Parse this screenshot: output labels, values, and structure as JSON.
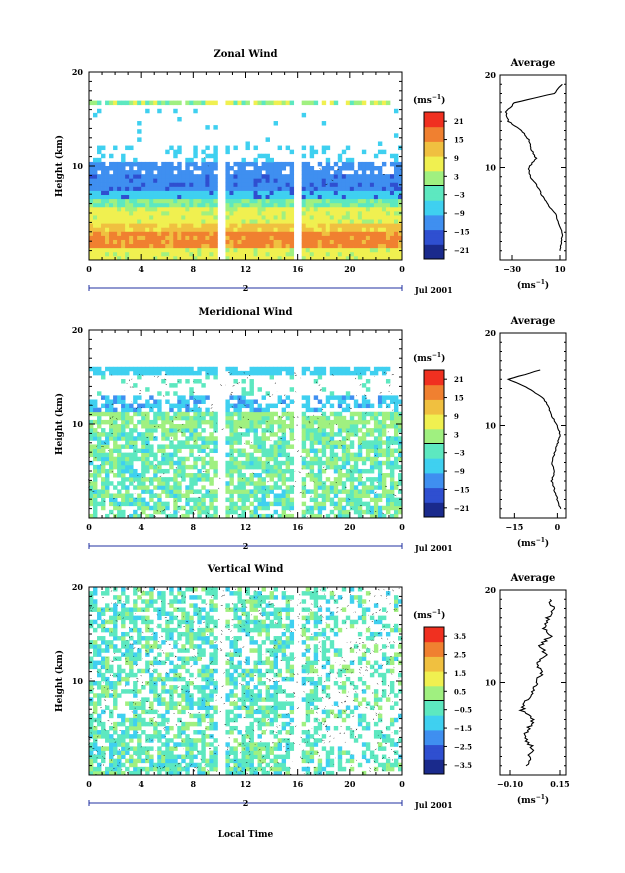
{
  "chart_data": [
    {
      "type": "heatmap",
      "title": "Zonal Wind",
      "ylabel": "Height (km)",
      "yticks": [
        "10",
        "20"
      ],
      "xticks": [
        "0",
        "4",
        "8",
        "12",
        "16",
        "20",
        "0"
      ],
      "day_marker": "2",
      "date_label": "Jul 2001",
      "xlim": [
        0,
        24
      ],
      "ylim": [
        0,
        20
      ],
      "colorbar": {
        "unit_base": "(ms",
        "unit_exp": "−1",
        "unit_close": ")",
        "ticks": [
          "21",
          "15",
          "9",
          "3",
          "−3",
          "−9",
          "−15",
          "−21"
        ],
        "range": [
          -24,
          24
        ],
        "colors": [
          "#1a2a8c",
          "#2f4fd0",
          "#3f8ff0",
          "#3fd0f0",
          "#5de8c0",
          "#a0f080",
          "#f0f050",
          "#f0c040",
          "#f08030",
          "#f03020"
        ]
      },
      "average": {
        "title": "Average",
        "unit_base": "(ms",
        "unit_exp": "−1",
        "unit_close": ")",
        "xticks": [
          "−30",
          "10"
        ],
        "yticks": [
          "10",
          "20"
        ],
        "xlim": [
          -40,
          15
        ],
        "height": [
          1,
          2,
          3,
          4,
          5,
          6,
          7,
          8,
          9,
          10,
          11,
          12,
          13,
          14,
          15,
          16,
          17,
          18,
          19
        ],
        "values": [
          10,
          11,
          12,
          9,
          6,
          0,
          -5,
          -9,
          -15,
          -16,
          -10,
          -14,
          -16,
          -22,
          -33,
          -35,
          -28,
          5,
          12
        ]
      }
    },
    {
      "type": "heatmap",
      "title": "Meridional Wind",
      "ylabel": "Height (km)",
      "yticks": [
        "10",
        "20"
      ],
      "xticks": [
        "0",
        "4",
        "8",
        "12",
        "16",
        "20",
        "0"
      ],
      "day_marker": "2",
      "date_label": "Jul 2001",
      "xlim": [
        0,
        24
      ],
      "ylim": [
        0,
        20
      ],
      "colorbar": {
        "unit_base": "(ms",
        "unit_exp": "−1",
        "unit_close": ")",
        "ticks": [
          "21",
          "15",
          "9",
          "3",
          "−3",
          "−9",
          "−15",
          "−21"
        ],
        "range": [
          -24,
          24
        ],
        "colors": [
          "#1a2a8c",
          "#2f4fd0",
          "#3f8ff0",
          "#3fd0f0",
          "#5de8c0",
          "#a0f080",
          "#f0f050",
          "#f0c040",
          "#f08030",
          "#f03020"
        ]
      },
      "average": {
        "title": "Average",
        "unit_base": "(ms",
        "unit_exp": "−1",
        "unit_close": ")",
        "xticks": [
          "−15",
          "0"
        ],
        "yticks": [
          "10",
          "20"
        ],
        "xlim": [
          -20,
          3
        ],
        "height": [
          1,
          2,
          3,
          4,
          5,
          6,
          7,
          8,
          9,
          10,
          11,
          12,
          13,
          14,
          15,
          16
        ],
        "values": [
          1,
          0,
          -1,
          -2,
          -1,
          -2,
          -1,
          0,
          1,
          0,
          -2,
          -3,
          -5,
          -10,
          -17,
          -6
        ]
      }
    },
    {
      "type": "heatmap",
      "title": "Vertical Wind",
      "ylabel": "Height (km)",
      "xlabel": "Local Time",
      "yticks": [
        "10",
        "20"
      ],
      "xticks": [
        "0",
        "4",
        "8",
        "12",
        "16",
        "20",
        "0"
      ],
      "day_marker": "2",
      "date_label": "Jul 2001",
      "xlim": [
        0,
        24
      ],
      "ylim": [
        0,
        20
      ],
      "colorbar": {
        "unit_base": "(ms",
        "unit_exp": "−1",
        "unit_close": ")",
        "ticks": [
          "3.5",
          "2.5",
          "1.5",
          "0.5",
          "−0.5",
          "−1.5",
          "−2.5",
          "−3.5"
        ],
        "range": [
          -4,
          4
        ],
        "colors": [
          "#1a2a8c",
          "#2f4fd0",
          "#3f8ff0",
          "#3fd0f0",
          "#5de8c0",
          "#a0f080",
          "#f0f050",
          "#f0c040",
          "#f08030",
          "#f03020"
        ]
      },
      "average": {
        "title": "Average",
        "unit_base": "(ms",
        "unit_exp": "−1",
        "unit_close": ")",
        "xticks": [
          "−0.10",
          "0.15"
        ],
        "yticks": [
          "10",
          "20"
        ],
        "xlim": [
          -0.15,
          0.18
        ],
        "height": [
          1,
          2,
          3,
          4,
          5,
          6,
          7,
          8,
          9,
          10,
          11,
          12,
          13,
          14,
          15,
          16,
          17,
          18,
          19
        ],
        "values": [
          -0.02,
          0.0,
          0.01,
          -0.03,
          -0.01,
          0.02,
          -0.04,
          -0.02,
          0.01,
          0.03,
          0.06,
          0.04,
          0.08,
          0.05,
          0.1,
          0.07,
          0.09,
          0.12,
          0.1
        ]
      }
    }
  ]
}
